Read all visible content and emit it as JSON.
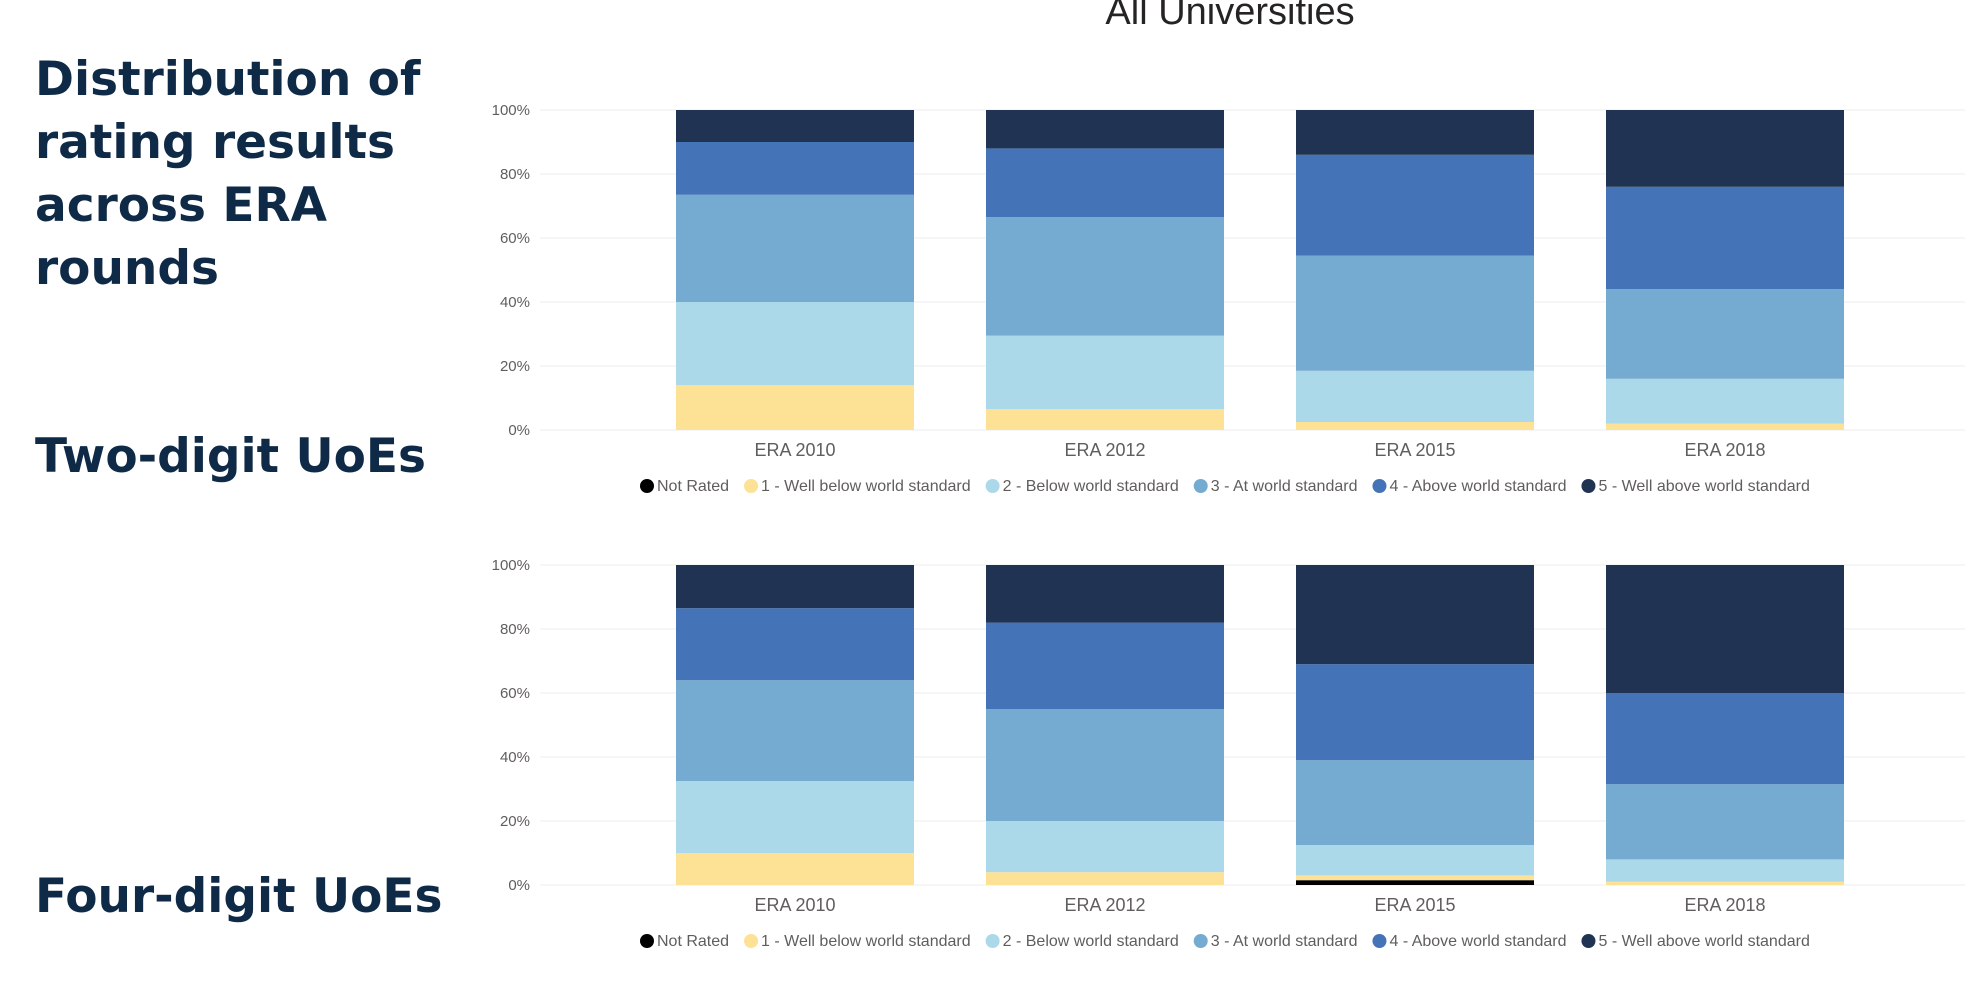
{
  "page": {
    "heading": "Distribution of rating results across ERA rounds",
    "two_digit_label": "Two-digit UoEs",
    "four_digit_label": "Four-digit UoEs"
  },
  "colors": {
    "Not Rated": "#000000",
    "1 - Well below world standard": "#fde195",
    "2 - Below world standard": "#acd9ea",
    "3 - At world standard": "#75abd1",
    "4 - Above world standard": "#4474b7",
    "5 - Well above world standard": "#203352"
  },
  "chart_data": [
    {
      "type": "bar",
      "stacked": true,
      "title": "All Universities",
      "categories": [
        "ERA 2010",
        "ERA 2012",
        "ERA 2015",
        "ERA 2018"
      ],
      "ylim": [
        0,
        100
      ],
      "yticks": [
        "0%",
        "20%",
        "40%",
        "60%",
        "80%",
        "100%"
      ],
      "legend_position": "bottom",
      "series": [
        {
          "name": "Not Rated",
          "values": [
            0,
            0,
            0,
            0
          ]
        },
        {
          "name": "1 - Well below world standard",
          "values": [
            14,
            6.5,
            2.5,
            2
          ]
        },
        {
          "name": "2 - Below world standard",
          "values": [
            26,
            23,
            16,
            14
          ]
        },
        {
          "name": "3 - At world standard",
          "values": [
            33.5,
            37,
            36,
            28
          ]
        },
        {
          "name": "4 - Above world standard",
          "values": [
            16.5,
            21.5,
            31.5,
            32
          ]
        },
        {
          "name": "5 - Well above world standard",
          "values": [
            10,
            12,
            14,
            24
          ]
        }
      ]
    },
    {
      "type": "bar",
      "stacked": true,
      "title": "",
      "categories": [
        "ERA 2010",
        "ERA 2012",
        "ERA 2015",
        "ERA 2018"
      ],
      "ylim": [
        0,
        100
      ],
      "yticks": [
        "0%",
        "20%",
        "40%",
        "60%",
        "80%",
        "100%"
      ],
      "legend_position": "bottom",
      "series": [
        {
          "name": "Not Rated",
          "values": [
            0,
            0,
            1.5,
            0
          ]
        },
        {
          "name": "1 - Well below world standard",
          "values": [
            10,
            4,
            1.5,
            1
          ]
        },
        {
          "name": "2 - Below world standard",
          "values": [
            22.5,
            16,
            9.5,
            7
          ]
        },
        {
          "name": "3 - At world standard",
          "values": [
            31.5,
            35,
            26.5,
            23.5
          ]
        },
        {
          "name": "4 - Above world standard",
          "values": [
            22.5,
            27,
            30,
            28.5
          ]
        },
        {
          "name": "5 - Well above world standard",
          "values": [
            13.5,
            18,
            31,
            40
          ]
        }
      ]
    }
  ]
}
